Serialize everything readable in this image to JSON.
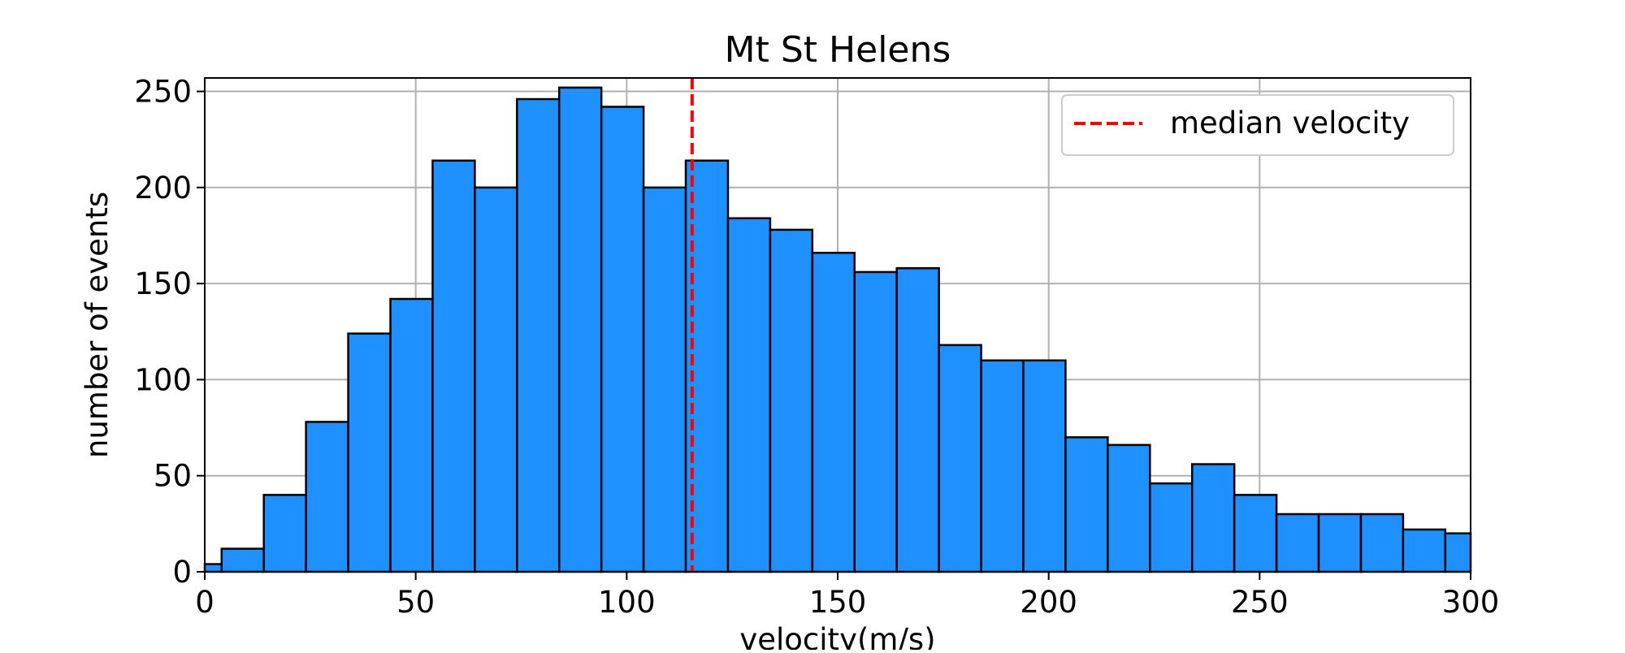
{
  "chart_data": {
    "type": "bar",
    "title": "Mt St Helens",
    "xlabel": "velocity(m/s)",
    "ylabel": "number of events",
    "xlim": [
      0,
      300
    ],
    "ylim": [
      0,
      257
    ],
    "xticks": [
      0,
      50,
      100,
      150,
      200,
      250,
      300
    ],
    "yticks": [
      0,
      50,
      100,
      150,
      200,
      250
    ],
    "grid": true,
    "legend": {
      "position": "top-right",
      "entries": [
        {
          "label": "median velocity",
          "style": "dashed",
          "color": "#ff0000"
        }
      ]
    },
    "median_velocity": 115.5,
    "bar_color": "#1e90ff",
    "edge_color": "#000000",
    "bins": [
      {
        "x0": 0,
        "x1": 4,
        "count": 4
      },
      {
        "x0": 4,
        "x1": 14,
        "count": 12
      },
      {
        "x0": 14,
        "x1": 24,
        "count": 40
      },
      {
        "x0": 24,
        "x1": 34,
        "count": 78
      },
      {
        "x0": 34,
        "x1": 44,
        "count": 124
      },
      {
        "x0": 44,
        "x1": 54,
        "count": 142
      },
      {
        "x0": 54,
        "x1": 64,
        "count": 214
      },
      {
        "x0": 64,
        "x1": 74,
        "count": 200
      },
      {
        "x0": 74,
        "x1": 84,
        "count": 246
      },
      {
        "x0": 84,
        "x1": 94,
        "count": 252
      },
      {
        "x0": 94,
        "x1": 104,
        "count": 242
      },
      {
        "x0": 104,
        "x1": 114,
        "count": 200
      },
      {
        "x0": 114,
        "x1": 124,
        "count": 214
      },
      {
        "x0": 124,
        "x1": 134,
        "count": 184
      },
      {
        "x0": 134,
        "x1": 144,
        "count": 178
      },
      {
        "x0": 144,
        "x1": 154,
        "count": 166
      },
      {
        "x0": 154,
        "x1": 164,
        "count": 156
      },
      {
        "x0": 164,
        "x1": 174,
        "count": 158
      },
      {
        "x0": 174,
        "x1": 184,
        "count": 118
      },
      {
        "x0": 184,
        "x1": 194,
        "count": 110
      },
      {
        "x0": 194,
        "x1": 204,
        "count": 110
      },
      {
        "x0": 204,
        "x1": 214,
        "count": 70
      },
      {
        "x0": 214,
        "x1": 224,
        "count": 66
      },
      {
        "x0": 224,
        "x1": 234,
        "count": 46
      },
      {
        "x0": 234,
        "x1": 244,
        "count": 56
      },
      {
        "x0": 244,
        "x1": 254,
        "count": 40
      },
      {
        "x0": 254,
        "x1": 264,
        "count": 30
      },
      {
        "x0": 264,
        "x1": 274,
        "count": 30
      },
      {
        "x0": 274,
        "x1": 284,
        "count": 30
      },
      {
        "x0": 284,
        "x1": 294,
        "count": 22
      },
      {
        "x0": 294,
        "x1": 300,
        "count": 20
      }
    ]
  }
}
